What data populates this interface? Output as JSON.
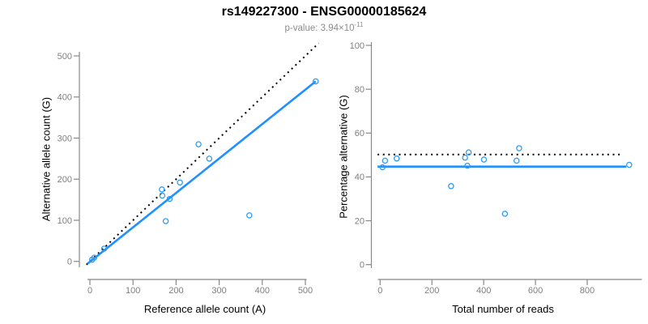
{
  "header": {
    "title": "rs149227300 - ENSG00000185624",
    "subtitle_text": "p-value: 3.94×10",
    "subtitle_exponent": "-11"
  },
  "colors": {
    "point": "#2E9BF5",
    "fit_line": "#1E90FF",
    "dotted_line": "#000000",
    "axis_line": "#888888",
    "tick_label": "#7F7F7F",
    "title": "#000000",
    "subtitle": "#8C8C8C"
  },
  "chart_data": [
    {
      "type": "scatter",
      "panel": "left",
      "xlabel": "Reference allele count (A)",
      "ylabel": "Alternative allele count (G)",
      "xlim": [
        0,
        530
      ],
      "ylim": [
        0,
        520
      ],
      "xticks": [
        0,
        100,
        200,
        300,
        400,
        500
      ],
      "yticks": [
        0,
        100,
        200,
        300,
        400,
        500
      ],
      "grid": false,
      "points": [
        [
          5,
          4
        ],
        [
          10,
          9
        ],
        [
          33,
          31
        ],
        [
          167,
          175
        ],
        [
          168,
          160
        ],
        [
          185,
          152
        ],
        [
          176,
          98
        ],
        [
          209,
          192
        ],
        [
          252,
          285
        ],
        [
          277,
          250
        ],
        [
          370,
          112
        ],
        [
          524,
          438
        ]
      ],
      "lines": [
        {
          "name": "identity-dotted-line",
          "dash": true,
          "from": [
            -8,
            -8
          ],
          "to": [
            531,
            531
          ]
        },
        {
          "name": "regression-fit-line",
          "dash": false,
          "from": [
            -6,
            -6
          ],
          "to": [
            524,
            438
          ]
        }
      ]
    },
    {
      "type": "scatter",
      "panel": "right",
      "xlabel": "Total number of reads",
      "ylabel": "Percentage alternative (G)",
      "xlim": [
        0,
        960
      ],
      "ylim": [
        0,
        100
      ],
      "xticks": [
        0,
        200,
        400,
        600,
        800
      ],
      "yticks": [
        0,
        20,
        40,
        60,
        80,
        100
      ],
      "grid": false,
      "points": [
        [
          9,
          44.4
        ],
        [
          19,
          47.4
        ],
        [
          64,
          48.4
        ],
        [
          274,
          35.8
        ],
        [
          328,
          48.8
        ],
        [
          337,
          45.1
        ],
        [
          342,
          51.2
        ],
        [
          401,
          47.9
        ],
        [
          482,
          23.2
        ],
        [
          527,
          47.4
        ],
        [
          537,
          53.1
        ],
        [
          962,
          45.5
        ]
      ],
      "lines": [
        {
          "name": "expected-dotted-line",
          "dash": true,
          "from": [
            -10,
            50.2
          ],
          "to": [
            936,
            50.2
          ]
        },
        {
          "name": "regression-fit-line",
          "dash": false,
          "from": [
            -10,
            44.7
          ],
          "to": [
            951,
            44.7
          ]
        }
      ]
    }
  ]
}
